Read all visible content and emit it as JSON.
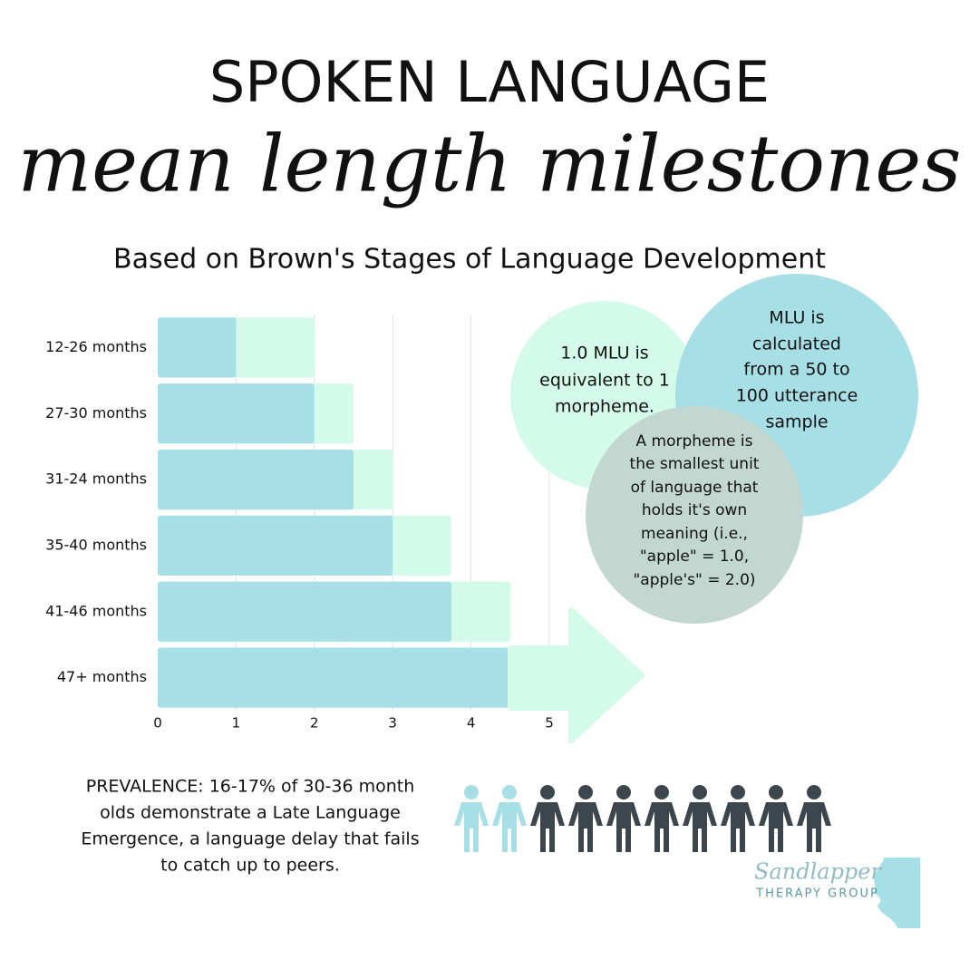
{
  "chart_data": {
    "type": "bar",
    "orientation": "horizontal",
    "title": "SPOKEN LANGUAGE",
    "subtitle": "mean length milestones",
    "caption": "Based on Brown's Stages of Language Development",
    "categories": [
      "12-26 months",
      "27-30 months",
      "31-24 months",
      "35-40 months",
      "41-46 months",
      "47+ months"
    ],
    "series": [
      {
        "color": "#d4fbe9",
        "values": [
          2,
          2.5,
          3,
          3.75,
          4.5,
          null
        ]
      },
      {
        "color": "#a7dfe6",
        "values": [
          1,
          2,
          2.5,
          3,
          3.75,
          4.5
        ]
      }
    ],
    "xlim": [
      0,
      5
    ],
    "xticks": [
      0,
      1,
      2,
      3,
      4,
      5
    ],
    "grid": true
  },
  "annotations": [
    {
      "color": "#d4fbe9",
      "lines": [
        "1.0 MLU is",
        "equivalent to 1",
        "morpheme."
      ]
    },
    {
      "color": "#a7dfe6",
      "lines": [
        "MLU is",
        "calculated",
        "from a 50 to",
        "100 utterance",
        "sample"
      ]
    },
    {
      "color": "#c3d7d1",
      "lines": [
        "A morpheme is",
        "the smallest unit",
        "of language that",
        "holds it's own",
        "meaning (i.e.,",
        "\"apple\" = 1.0,",
        "\"apple's\" = 2.0)"
      ]
    }
  ],
  "prevalence": [
    "PREVALENCE: 16-17% of 30-36 month",
    "olds demonstrate a Late Language",
    "Emergence, a language delay that fails",
    "to catch up to peers."
  ],
  "logo": {
    "name": "Sandlapper",
    "tagline": "THERAPY GROUP"
  }
}
